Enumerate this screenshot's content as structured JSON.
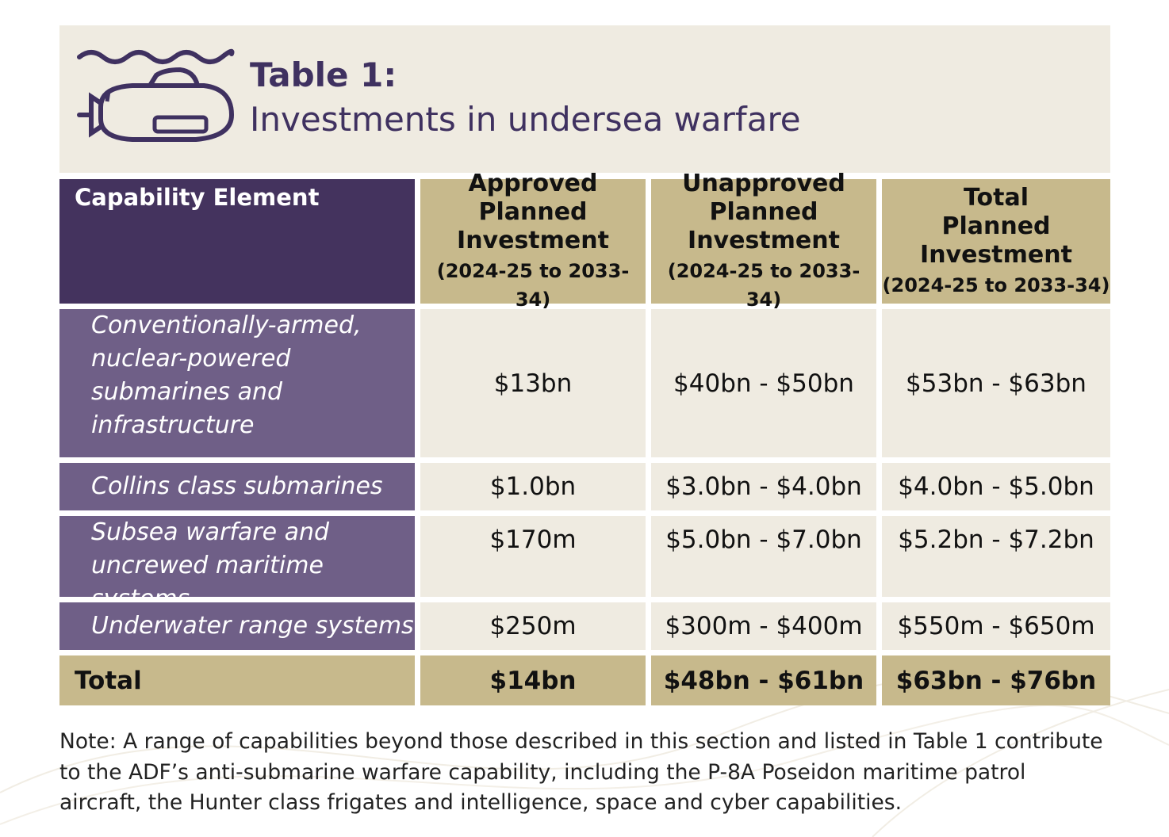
{
  "title": {
    "label": "Table 1:",
    "subtitle": "Investments in undersea warfare"
  },
  "table": {
    "headers": {
      "capability": "Capability Element",
      "approved": [
        "Approved",
        "Planned",
        "Investment"
      ],
      "unapproved": [
        "Unapproved",
        "Planned",
        "Investment"
      ],
      "total": [
        "Total",
        "Planned",
        "Investment"
      ],
      "period": "(2024-25 to 2033-34)"
    },
    "rows": [
      {
        "label_lines": [
          "Conventionally-armed,",
          "nuclear-powered",
          "submarines and",
          "infrastructure"
        ],
        "approved": "$13bn",
        "unapproved": "$40bn - $50bn",
        "total": "$53bn - $63bn"
      },
      {
        "label_lines": [
          "Collins class submarines"
        ],
        "approved": "$1.0bn",
        "unapproved": "$3.0bn - $4.0bn",
        "total": "$4.0bn - $5.0bn"
      },
      {
        "label_lines": [
          "Subsea warfare and",
          "uncrewed maritime systems"
        ],
        "approved": "$170m",
        "unapproved": "$5.0bn - $7.0bn",
        "total": "$5.2bn - $7.2bn"
      },
      {
        "label_lines": [
          "Underwater range systems"
        ],
        "approved": "$250m",
        "unapproved": "$300m - $400m",
        "total": "$550m - $650m"
      }
    ],
    "total_row": {
      "label": "Total",
      "approved": "$14bn",
      "unapproved": "$48bn - $61bn",
      "total": "$63bn - $76bn"
    }
  },
  "note": "Note: A range of capabilities beyond those described in this section and listed in Table 1 contribute to the ADF’s anti-submarine warfare capability, including the P-8A Poseidon maritime patrol aircraft, the Hunter class frigates and intelligence, space and cyber capabilities.",
  "colors": {
    "purple_dark": "#44335e",
    "purple_mid": "#6f5f87",
    "gold": "#c7b98c",
    "cream": "#efebe1",
    "title_text": "#3f3160"
  },
  "icons": [
    "submarine-icon",
    "wave-icon"
  ]
}
